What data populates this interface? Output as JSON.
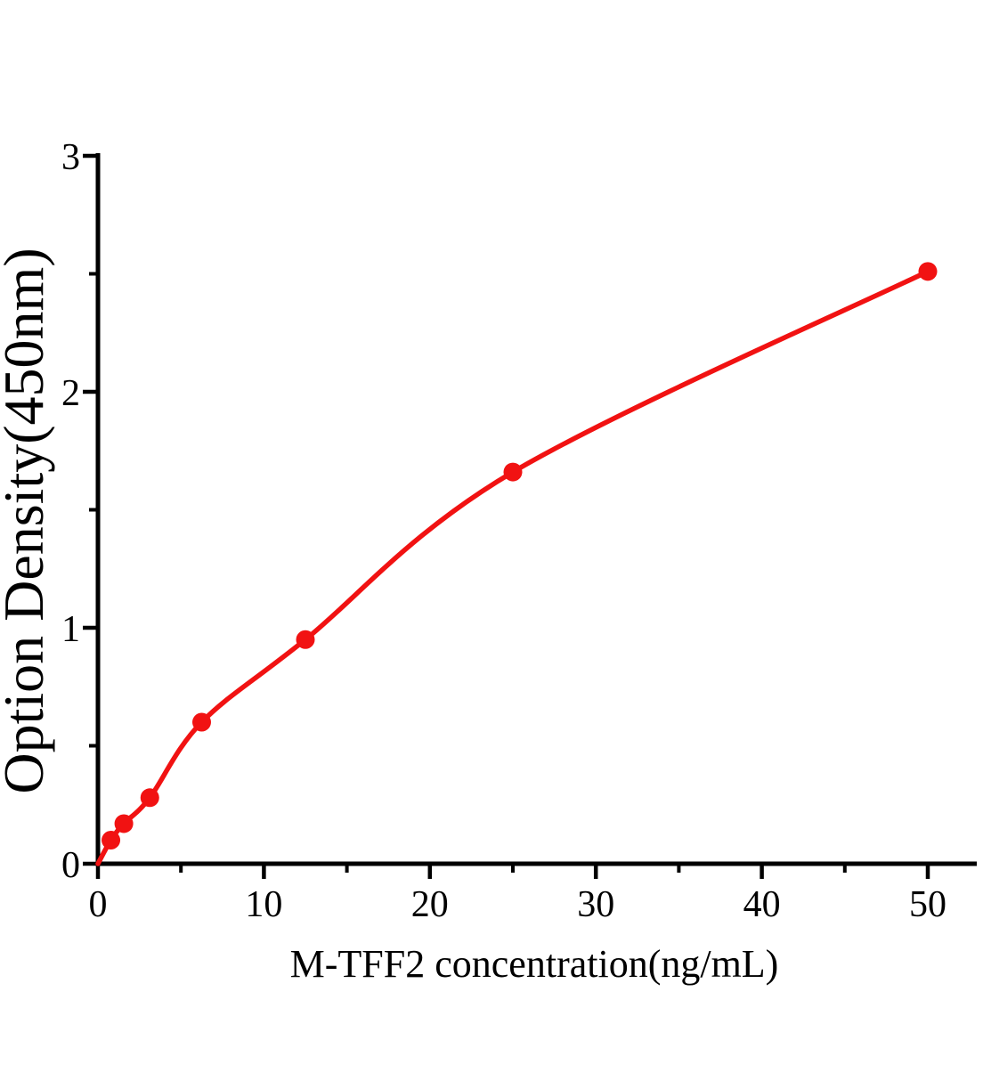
{
  "chart_data": {
    "type": "scatter",
    "title": "",
    "xlabel": "M-TFF2 concentration(ng/mL)",
    "ylabel": "Option Density(450nm)",
    "curve_start": {
      "x": 0,
      "y": 0
    },
    "points": [
      {
        "x": 0.78,
        "y": 0.1
      },
      {
        "x": 1.56,
        "y": 0.17
      },
      {
        "x": 3.125,
        "y": 0.28
      },
      {
        "x": 6.25,
        "y": 0.6
      },
      {
        "x": 12.5,
        "y": 0.95
      },
      {
        "x": 25,
        "y": 1.66
      },
      {
        "x": 50,
        "y": 2.51
      }
    ],
    "x_major_ticks": [
      0,
      10,
      20,
      30,
      40,
      50
    ],
    "x_minor_ticks": [
      5,
      15,
      25,
      35,
      45
    ],
    "y_major_ticks": [
      0,
      1,
      2,
      3
    ],
    "y_minor_ticks": [
      0.5,
      1.5,
      2.5
    ],
    "xlim": [
      0,
      53
    ],
    "ylim": [
      0,
      3
    ],
    "grid": false,
    "legend": null,
    "colors": {
      "curve": "#f11212",
      "marker": "#f11212",
      "axis": "#000000",
      "background": "#ffffff"
    }
  }
}
